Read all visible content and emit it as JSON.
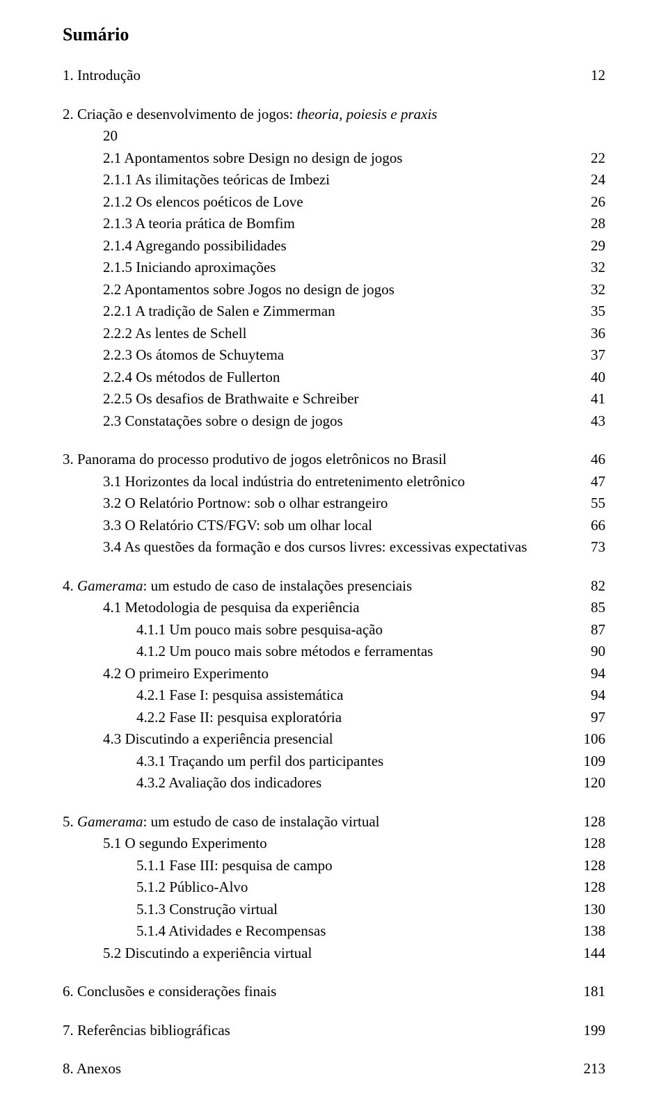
{
  "title": "Sumário",
  "sections": {
    "s1": {
      "label": "1. Introdução",
      "page": "12"
    },
    "s2": {
      "heading_pre": "2. Criação e desenvolvimento de jogos: ",
      "heading_italic": "theoria, poiesis e praxis",
      "heading_page_line": "20",
      "items": [
        {
          "label": "2.1 Apontamentos sobre Design no design de jogos",
          "page": "22",
          "indent": "ind1"
        },
        {
          "label": "2.1.1 As ilimitações teóricas de Imbezi",
          "page": "24",
          "indent": "ind1"
        },
        {
          "label": "2.1.2 Os elencos poéticos de Love",
          "page": "26",
          "indent": "ind1"
        },
        {
          "label": "2.1.3 A teoria prática de Bomfim",
          "page": "28",
          "indent": "ind1"
        },
        {
          "label": "2.1.4 Agregando possibilidades",
          "page": "29",
          "indent": "ind1"
        },
        {
          "label": "2.1.5 Iniciando aproximações",
          "page": "32",
          "indent": "ind1"
        },
        {
          "label": "2.2 Apontamentos sobre Jogos no design de jogos",
          "page": "32",
          "indent": "ind1"
        },
        {
          "label": "2.2.1 A tradição de Salen e Zimmerman",
          "page": "35",
          "indent": "ind1"
        },
        {
          "label": "2.2.2 As lentes de Schell",
          "page": "36",
          "indent": "ind1"
        },
        {
          "label": "2.2.3 Os átomos de Schuytema",
          "page": "37",
          "indent": "ind1"
        },
        {
          "label": "2.2.4 Os métodos de Fullerton",
          "page": "40",
          "indent": "ind1"
        },
        {
          "label": "2.2.5 Os desafios de Brathwaite e Schreiber",
          "page": "41",
          "indent": "ind1"
        },
        {
          "label": "2.3 Constatações sobre o design de jogos",
          "page": "43",
          "indent": "ind1"
        }
      ]
    },
    "s3": {
      "heading": {
        "label": "3. Panorama do processo produtivo de jogos eletrônicos no Brasil",
        "page": "46"
      },
      "items": [
        {
          "label": "3.1 Horizontes da local indústria do entretenimento eletrônico",
          "page": "47",
          "indent": "ind1"
        },
        {
          "label": "3.2 O Relatório Portnow: sob o olhar estrangeiro",
          "page": "55",
          "indent": "ind1"
        },
        {
          "label": "3.3 O Relatório CTS/FGV: sob um olhar local",
          "page": "66",
          "indent": "ind1"
        },
        {
          "label": "3.4 As questões da formação e dos cursos livres: excessivas expectativas",
          "page": "73",
          "indent": "ind1"
        }
      ]
    },
    "s4": {
      "heading_pre": "4. ",
      "heading_italic": "Gamerama",
      "heading_post": ": um estudo de caso de instalações presenciais",
      "heading_page": "82",
      "items": [
        {
          "label": "4.1 Metodologia de pesquisa da experiência",
          "page": "85",
          "indent": "ind2"
        },
        {
          "label": "4.1.1 Um pouco mais sobre pesquisa-ação",
          "page": "87",
          "indent": "ind3"
        },
        {
          "label": "4.1.2 Um pouco mais sobre métodos e ferramentas",
          "page": "90",
          "indent": "ind3"
        },
        {
          "label": "4.2 O primeiro Experimento",
          "page": "94",
          "indent": "ind2"
        },
        {
          "label": "4.2.1 Fase I: pesquisa assistemática",
          "page": "94",
          "indent": "ind3"
        },
        {
          "label": "4.2.2 Fase II: pesquisa exploratória",
          "page": "97",
          "indent": "ind3"
        },
        {
          "label": "4.3 Discutindo a experiência presencial",
          "page": "106",
          "indent": "ind2"
        },
        {
          "label": "4.3.1 Traçando um perfil dos participantes",
          "page": "109",
          "indent": "ind3"
        },
        {
          "label": "4.3.2 Avaliação dos indicadores",
          "page": "120",
          "indent": "ind3"
        }
      ]
    },
    "s5": {
      "heading_pre": "5. ",
      "heading_italic": "Gamerama",
      "heading_post": ": um estudo de caso de instalação virtual",
      "heading_page": "128",
      "items": [
        {
          "label": "5.1 O segundo Experimento",
          "page": "128",
          "indent": "ind2"
        },
        {
          "label": "5.1.1 Fase III: pesquisa de campo",
          "page": "128",
          "indent": "ind3"
        },
        {
          "label": "5.1.2 Público-Alvo",
          "page": "128",
          "indent": "ind3"
        },
        {
          "label": "5.1.3 Construção virtual",
          "page": "130",
          "indent": "ind3"
        },
        {
          "label": "5.1.4 Atividades e Recompensas",
          "page": "138",
          "indent": "ind3"
        },
        {
          "label": "5.2 Discutindo a experiência virtual",
          "page": "144",
          "indent": "ind2"
        }
      ]
    },
    "s6": {
      "label": "6. Conclusões e considerações finais",
      "page": "181"
    },
    "s7": {
      "label": "7. Referências bibliográficas",
      "page": "199"
    },
    "s8": {
      "label": "8. Anexos",
      "page": "213"
    }
  }
}
